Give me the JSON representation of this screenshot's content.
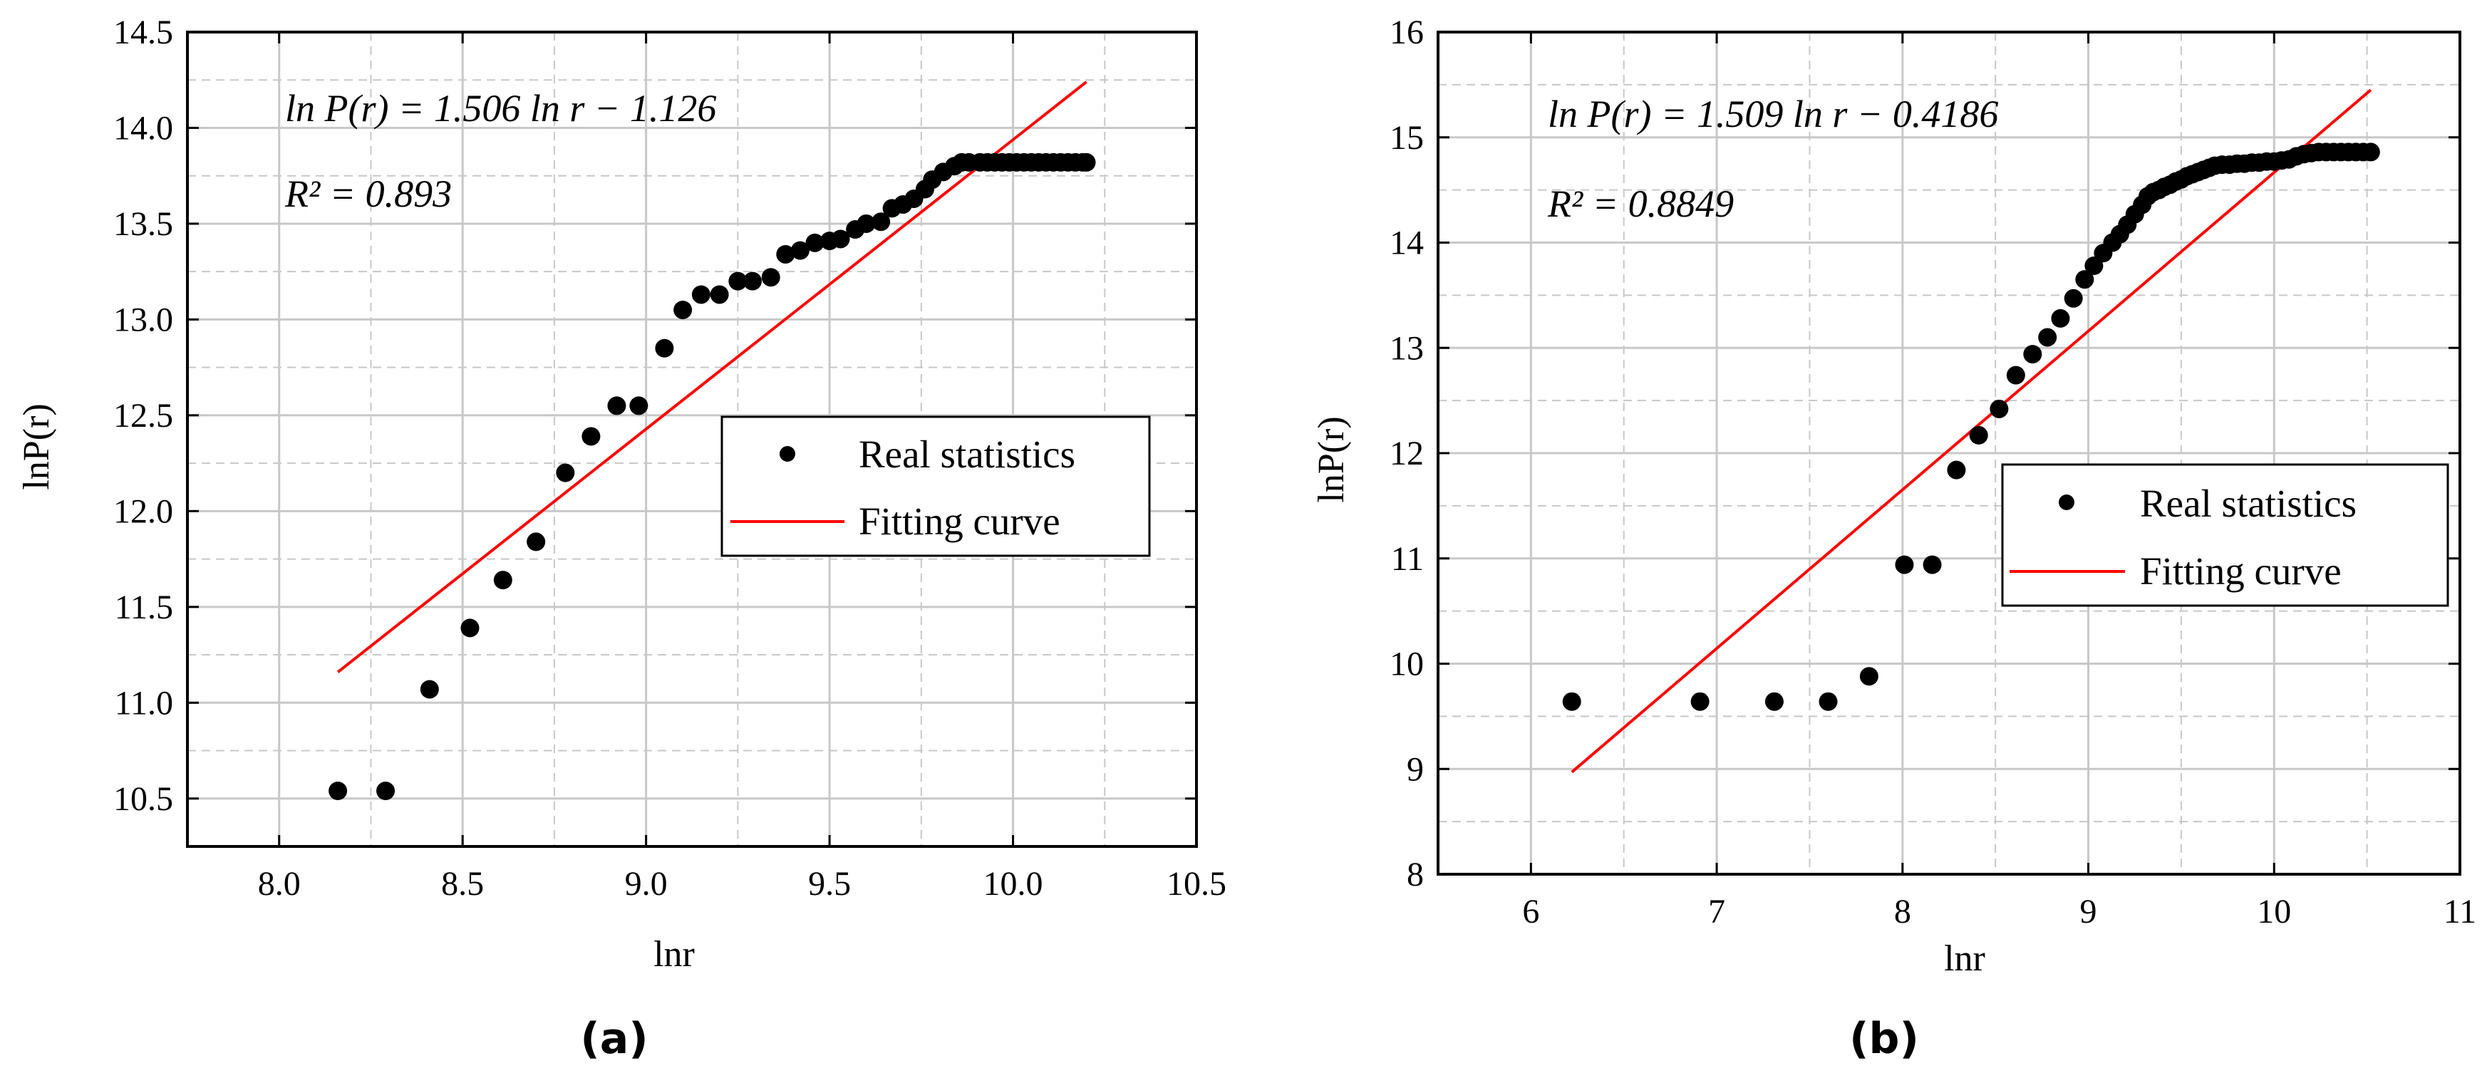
{
  "colors": {
    "points": "#000000",
    "fit_line": "#ff0000",
    "grid": "#c8c8c8",
    "axis": "#000000"
  },
  "chart_data": [
    {
      "type": "scatter",
      "panel_label": "(a)",
      "xlabel": "lnr",
      "ylabel": "lnP(r)",
      "xlim": [
        7.75,
        10.5
      ],
      "ylim": [
        10.25,
        14.5
      ],
      "xticks": [
        "8.0",
        "8.5",
        "9.0",
        "9.5",
        "10.0",
        "10.5"
      ],
      "yticks": [
        "10.5",
        "11.0",
        "11.5",
        "12.0",
        "12.5",
        "13.0",
        "13.5",
        "14.0",
        "14.5"
      ],
      "grid": true,
      "equation": "ln P(r) = 1.506 ln r − 1.126",
      "r_squared": "R² = 0.893",
      "legend": {
        "position": "center-right",
        "points_label": "Real statistics",
        "line_label": "Fitting curve"
      },
      "fit_line": {
        "x": [
          8.16,
          10.2
        ],
        "y": [
          11.16,
          14.24
        ]
      },
      "series": [
        {
          "name": "Real statistics",
          "x": [
            8.16,
            8.29,
            8.41,
            8.52,
            8.61,
            8.7,
            8.78,
            8.85,
            8.92,
            8.98,
            9.05,
            9.1,
            9.15,
            9.2,
            9.25,
            9.29,
            9.34,
            9.38,
            9.42,
            9.46,
            9.5,
            9.53,
            9.57,
            9.6,
            9.64,
            9.67,
            9.7,
            9.73,
            9.76,
            9.78,
            9.81,
            9.84,
            9.86,
            9.88,
            9.91,
            9.93,
            9.95,
            9.97,
            9.99,
            10.01,
            10.03,
            10.05,
            10.07,
            10.09,
            10.11,
            10.13,
            10.15,
            10.17,
            10.19,
            10.2
          ],
          "y": [
            10.54,
            10.54,
            11.07,
            11.39,
            11.64,
            11.84,
            12.2,
            12.39,
            12.55,
            12.55,
            12.85,
            13.05,
            13.13,
            13.13,
            13.2,
            13.2,
            13.22,
            13.34,
            13.36,
            13.4,
            13.41,
            13.42,
            13.47,
            13.5,
            13.51,
            13.58,
            13.6,
            13.63,
            13.68,
            13.73,
            13.77,
            13.8,
            13.82,
            13.82,
            13.82,
            13.82,
            13.82,
            13.82,
            13.82,
            13.82,
            13.82,
            13.82,
            13.82,
            13.82,
            13.82,
            13.82,
            13.82,
            13.82,
            13.82,
            13.82
          ]
        }
      ]
    },
    {
      "type": "scatter",
      "panel_label": "(b)",
      "xlabel": "lnr",
      "ylabel": "lnP(r)",
      "xlim": [
        5.5,
        11
      ],
      "ylim": [
        8,
        16
      ],
      "xticks": [
        "6",
        "7",
        "8",
        "9",
        "10",
        "11"
      ],
      "yticks": [
        "8",
        "9",
        "10",
        "11",
        "12",
        "13",
        "14",
        "15",
        "16"
      ],
      "grid": true,
      "equation": "ln P(r) = 1.509 ln r − 0.4186",
      "r_squared": "R² = 0.8849",
      "legend": {
        "position": "center-right",
        "points_label": "Real statistics",
        "line_label": "Fitting curve"
      },
      "fit_line": {
        "x": [
          6.22,
          10.52
        ],
        "y": [
          8.97,
          15.45
        ]
      },
      "series": [
        {
          "name": "Real statistics",
          "x": [
            6.22,
            6.91,
            7.31,
            7.6,
            7.82,
            8.01,
            8.16,
            8.29,
            8.41,
            8.52,
            8.61,
            8.7,
            8.78,
            8.85,
            8.92,
            8.98,
            9.03,
            9.08,
            9.13,
            9.17,
            9.21,
            9.25,
            9.29,
            9.32,
            9.35,
            9.38,
            9.41,
            9.44,
            9.47,
            9.5,
            9.53,
            9.56,
            9.59,
            9.62,
            9.65,
            9.68,
            9.72,
            9.76,
            9.8,
            9.84,
            9.88,
            9.92,
            9.96,
            10.0,
            10.04,
            10.08,
            10.12,
            10.16,
            10.2,
            10.24,
            10.28,
            10.32,
            10.36,
            10.4,
            10.44,
            10.48,
            10.52
          ],
          "y": [
            9.64,
            9.64,
            9.64,
            9.64,
            9.88,
            10.94,
            10.94,
            11.84,
            12.17,
            12.42,
            12.74,
            12.94,
            13.1,
            13.28,
            13.47,
            13.65,
            13.78,
            13.9,
            14.0,
            14.08,
            14.17,
            14.27,
            14.36,
            14.44,
            14.48,
            14.5,
            14.53,
            14.55,
            14.58,
            14.6,
            14.63,
            14.65,
            14.67,
            14.69,
            14.71,
            14.73,
            14.74,
            14.74,
            14.75,
            14.75,
            14.76,
            14.76,
            14.77,
            14.77,
            14.78,
            14.79,
            14.82,
            14.84,
            14.85,
            14.86,
            14.86,
            14.86,
            14.86,
            14.86,
            14.86,
            14.86,
            14.86
          ]
        }
      ]
    }
  ]
}
